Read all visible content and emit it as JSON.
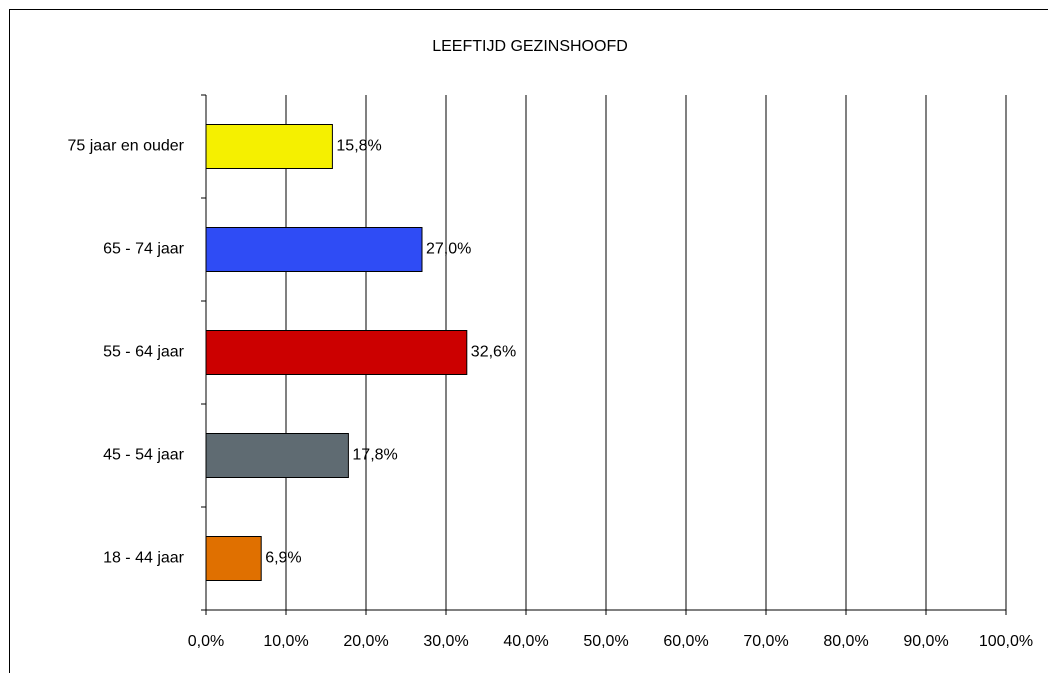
{
  "chart_data": {
    "type": "barh",
    "title": "LEEFTIJD GEZINSHOOFD",
    "categories": [
      "75 jaar en ouder",
      "65 - 74 jaar",
      "55 - 64 jaar",
      "45 - 54 jaar",
      "18 - 44 jaar"
    ],
    "values": [
      15.8,
      27.0,
      32.6,
      17.8,
      6.9
    ],
    "value_labels": [
      "15,8%",
      "27,0%",
      "32,6%",
      "17,8%",
      "6,9%"
    ],
    "colors": [
      "#f5f000",
      "#2f4cf5",
      "#cc0000",
      "#5f6b72",
      "#e07000"
    ],
    "xlim": [
      0,
      100
    ],
    "xticks": [
      {
        "value": 0,
        "label": "0,0%"
      },
      {
        "value": 10,
        "label": "10,0%"
      },
      {
        "value": 20,
        "label": "20,0%"
      },
      {
        "value": 30,
        "label": "30,0%"
      },
      {
        "value": 40,
        "label": "40,0%"
      },
      {
        "value": 50,
        "label": "50,0%"
      },
      {
        "value": 60,
        "label": "60,0%"
      },
      {
        "value": 70,
        "label": "70,0%"
      },
      {
        "value": 80,
        "label": "80,0%"
      },
      {
        "value": 90,
        "label": "90,0%"
      },
      {
        "value": 100,
        "label": "100,0%"
      }
    ],
    "grid": true
  }
}
